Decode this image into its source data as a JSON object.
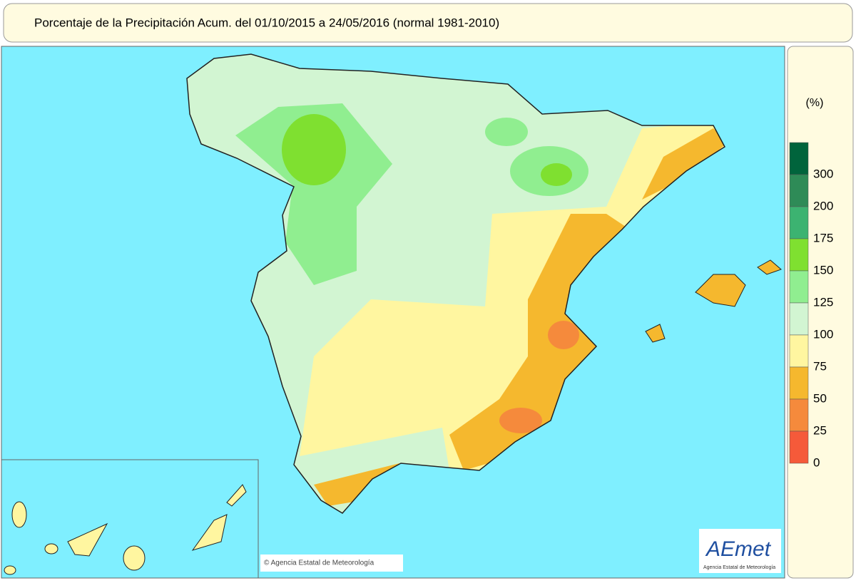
{
  "header": {
    "title": "Porcentaje de la Precipitación Acum. del 01/10/2015 a  24/05/2016  (normal 1981-2010)"
  },
  "legend": {
    "unit": "(%)",
    "colors": [
      "#00643c",
      "#2e8b57",
      "#3cb371",
      "#7fe030",
      "#90ee90",
      "#d2f5d2",
      "#fff6a0",
      "#f5b82e",
      "#f58a3c",
      "#f55a3a"
    ],
    "boundaries": [
      300,
      200,
      175,
      150,
      125,
      100,
      75,
      50,
      25,
      0
    ]
  },
  "copyright": "© Agencia Estatal de Meteorología",
  "logo": {
    "name": "AEmet",
    "subtitle": "Agencia Estatal de Meteorología"
  }
}
